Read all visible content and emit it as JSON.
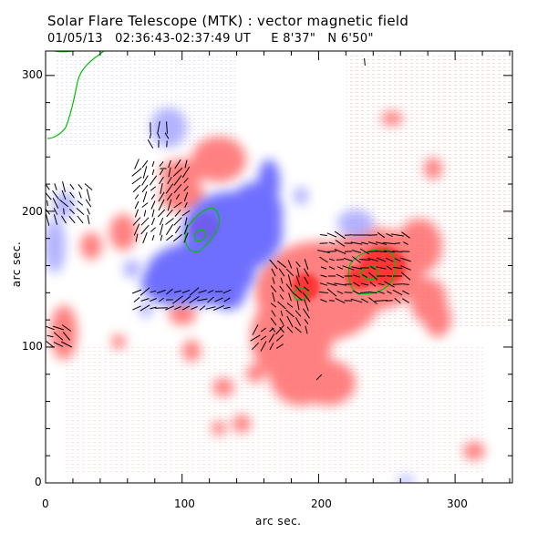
{
  "title": "Solar Flare Telescope (MTK) : vector magnetic field",
  "subtitle": "01/05/13   02:36:43-02:37:49 UT     E 8'37\"   N 6'50\"",
  "x_axis": {
    "label": "arc sec.",
    "range": [
      0,
      342
    ],
    "major_ticks": [
      0,
      100,
      200,
      300
    ],
    "tick_labels": [
      "0",
      "100",
      "200",
      "300"
    ]
  },
  "y_axis": {
    "label": "arc sec.",
    "range": [
      0,
      318
    ],
    "major_ticks": [
      0,
      100,
      200,
      300
    ],
    "tick_labels": [
      "0",
      "100",
      "200",
      "300"
    ]
  },
  "colors": {
    "positive_polarity": "#ff5a5a",
    "negative_polarity": "#5a5aff",
    "contour": "#00c000",
    "vector": "#000000",
    "frame": "#000000"
  }
}
